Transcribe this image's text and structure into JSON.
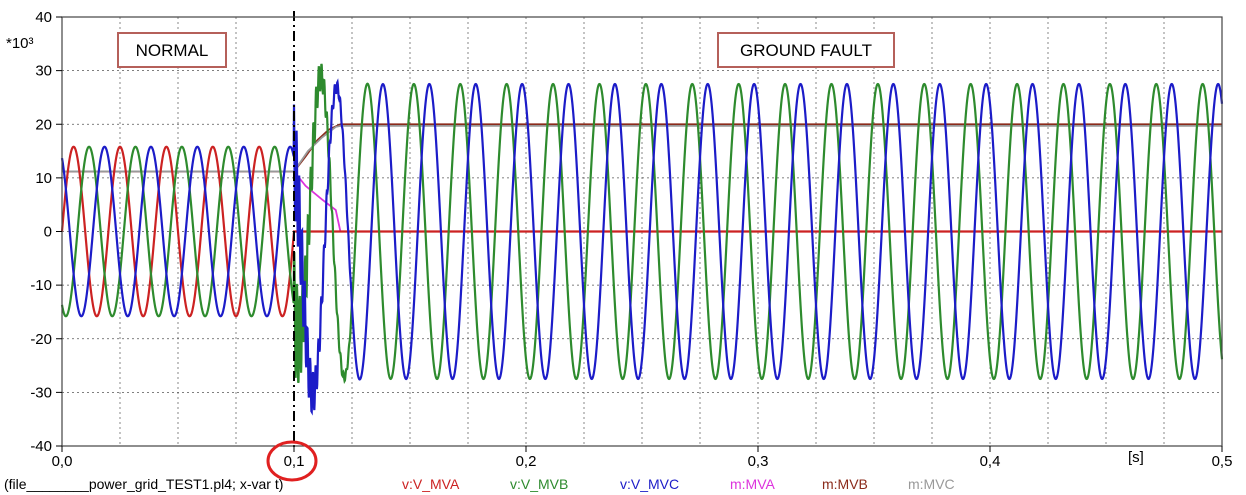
{
  "chart_data": {
    "type": "line",
    "title": "",
    "xlabel": "",
    "ylabel": "",
    "y_multiplier_label": "*10³",
    "x_unit_label": "[s]",
    "xlim": [
      0,
      0.5
    ],
    "ylim": [
      -40,
      40
    ],
    "x_ticks": [
      0,
      0.1,
      0.2,
      0.3,
      0.4,
      0.5
    ],
    "x_tick_labels": [
      "0,0",
      "0,1",
      "0,2",
      "0,3",
      "0,4",
      "0,5"
    ],
    "y_ticks": [
      -40,
      -30,
      -20,
      -10,
      0,
      10,
      20,
      30,
      40
    ],
    "y_tick_labels": [
      "-40",
      "-30",
      "-20",
      "-10",
      "0",
      "10",
      "20",
      "30",
      "40"
    ],
    "grid": true,
    "legend_placement": "bottom",
    "fault_time": 0.1,
    "annotations": [
      {
        "text": "NORMAL",
        "x": 0.04,
        "y": 34
      },
      {
        "text": "GROUND FAULT",
        "x": 0.295,
        "y": 34
      }
    ],
    "source_label": "(file________power_grid_TEST1.pl4; x-var t)",
    "frequency_hz": 50,
    "series": [
      {
        "name": "v:V_MVA",
        "color": "#cc2222",
        "kind": "sine",
        "amp_before": 15.8,
        "amp_after": 0,
        "phase_deg": 0
      },
      {
        "name": "v:V_MVB",
        "color": "#2e8b2e",
        "kind": "sine",
        "amp_before": 15.8,
        "amp_after": 27.5,
        "phase_deg": -120
      },
      {
        "name": "v:V_MVC",
        "color": "#1c1cc8",
        "kind": "sine",
        "amp_before": 15.8,
        "amp_after": 27.5,
        "phase_deg": 120
      },
      {
        "name": "m:MVA",
        "color": "#dd33dd",
        "kind": "piecewise",
        "x": [
          0,
          0.1,
          0.105,
          0.112,
          0.118,
          0.12,
          0.5
        ],
        "y": [
          11.2,
          11.2,
          8.5,
          6,
          4,
          0,
          0
        ]
      },
      {
        "name": "m:MVB",
        "color": "#8b2b1b",
        "kind": "piecewise",
        "x": [
          0,
          0.1,
          0.105,
          0.11,
          0.115,
          0.12,
          0.5
        ],
        "y": [
          11.2,
          11.2,
          14,
          17,
          19,
          20,
          20
        ]
      },
      {
        "name": "m:MVC",
        "color": "#999999",
        "kind": "piecewise",
        "x": [
          0,
          0.1,
          0.106,
          0.112,
          0.118,
          0.12,
          0.5
        ],
        "y": [
          11.2,
          11.2,
          15,
          17.5,
          19.5,
          19.7,
          19.7
        ]
      }
    ]
  }
}
